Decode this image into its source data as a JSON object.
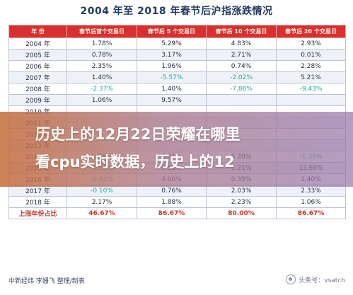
{
  "title": "2004 年至  2018 年春节后沪指涨跌情况",
  "table": {
    "headers": [
      "年  份",
      "春节后首个交易日",
      "春节后 5 个交易日",
      "春节后 10 个交易日",
      "春节后 20 个交易日"
    ],
    "rows": [
      [
        "2004 年",
        "1.78%",
        "5.29%",
        "4.83%",
        "2.93%"
      ],
      [
        "2005 年",
        "0.78%",
        "3.17%",
        "2.71%",
        "0.01%"
      ],
      [
        "2006 年",
        "2.35%",
        "1.96%",
        "0.74%",
        "2.28%"
      ],
      [
        "2007 年",
        "1.40%",
        "-5.57%",
        "-2.02%",
        "5.21%"
      ],
      [
        "2008 年",
        "-2.37%",
        "1.40%",
        "-7.86%",
        "-9.43%"
      ],
      [
        "2009 年",
        "1.06%",
        "9.57%",
        "",
        ""
      ],
      [
        "2010 年",
        "",
        "",
        "",
        ""
      ],
      [
        "2011 年",
        "",
        "",
        "",
        ""
      ],
      [
        "2012 年",
        "",
        "",
        "",
        ""
      ],
      [
        "2013 年",
        "",
        "",
        "",
        ""
      ],
      [
        "2014 年",
        "0.56%",
        "3.21%",
        "5.20%",
        "-1.35%"
      ],
      [
        "2015 年",
        "-0.55%",
        "0.50%",
        "1.21%",
        "13.69%"
      ],
      [
        "2016 年",
        "-0.63%",
        "4.00%",
        "0.35%",
        "1.40%"
      ],
      [
        "2017 年",
        "-0.10%",
        "0.76%",
        "2.03%",
        "2.33%"
      ],
      [
        "2018 年",
        "2.17%",
        "1.88%",
        "2.23%",
        "1.06%"
      ]
    ],
    "summary": [
      "上涨年份占比",
      "46.67%",
      "86.67%",
      "80.00%",
      "86.67%"
    ]
  },
  "headline": {
    "line1": "历史上的12月22日荣耀在哪里",
    "line2": "看cpu实时数据，历史上的12"
  },
  "footer": {
    "source": "中新经纬  李姗飞  整理/制表",
    "watermark": "头条号：vsatch"
  },
  "colors": {
    "header_bg": "#d9302f",
    "negative": "#22a6a8",
    "summary": "#c7362f",
    "overlay": "#c46c3a"
  }
}
